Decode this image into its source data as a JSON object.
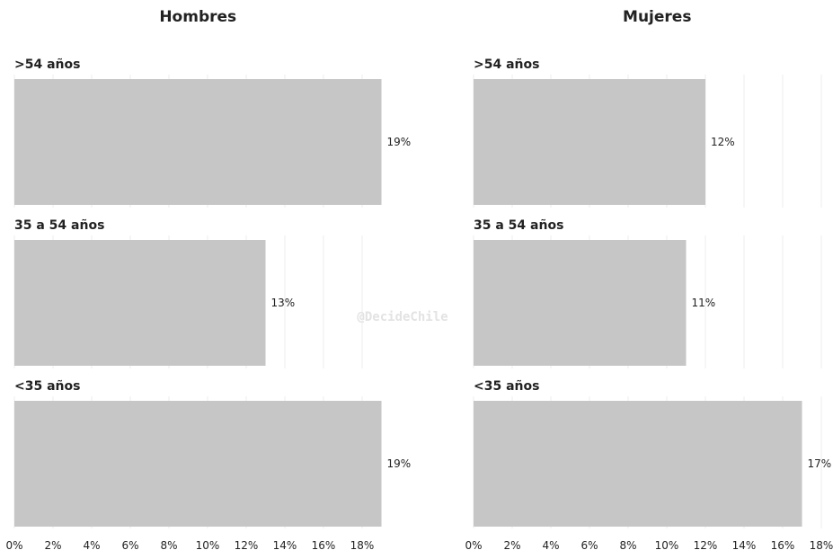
{
  "watermark": "@DecideChile",
  "chart_data": {
    "type": "bar",
    "orientation": "horizontal",
    "panel_titles": [
      "Hombres",
      "Mujeres"
    ],
    "categories": [
      ">54 años",
      "35 a 54 años",
      "<35 años"
    ],
    "series": [
      {
        "name": "Hombres",
        "values": [
          19,
          13,
          19
        ],
        "labels": [
          "19%",
          "13%",
          "19%"
        ]
      },
      {
        "name": "Mujeres",
        "values": [
          12,
          11,
          17
        ],
        "labels": [
          "12%",
          "11%",
          "17%"
        ]
      }
    ],
    "x_ticks": [
      "0%",
      "2%",
      "4%",
      "6%",
      "8%",
      "10%",
      "12%",
      "14%",
      "16%",
      "18%"
    ],
    "xlim": [
      0,
      19
    ],
    "bar_color": "#c6c6c6",
    "grid": true
  }
}
